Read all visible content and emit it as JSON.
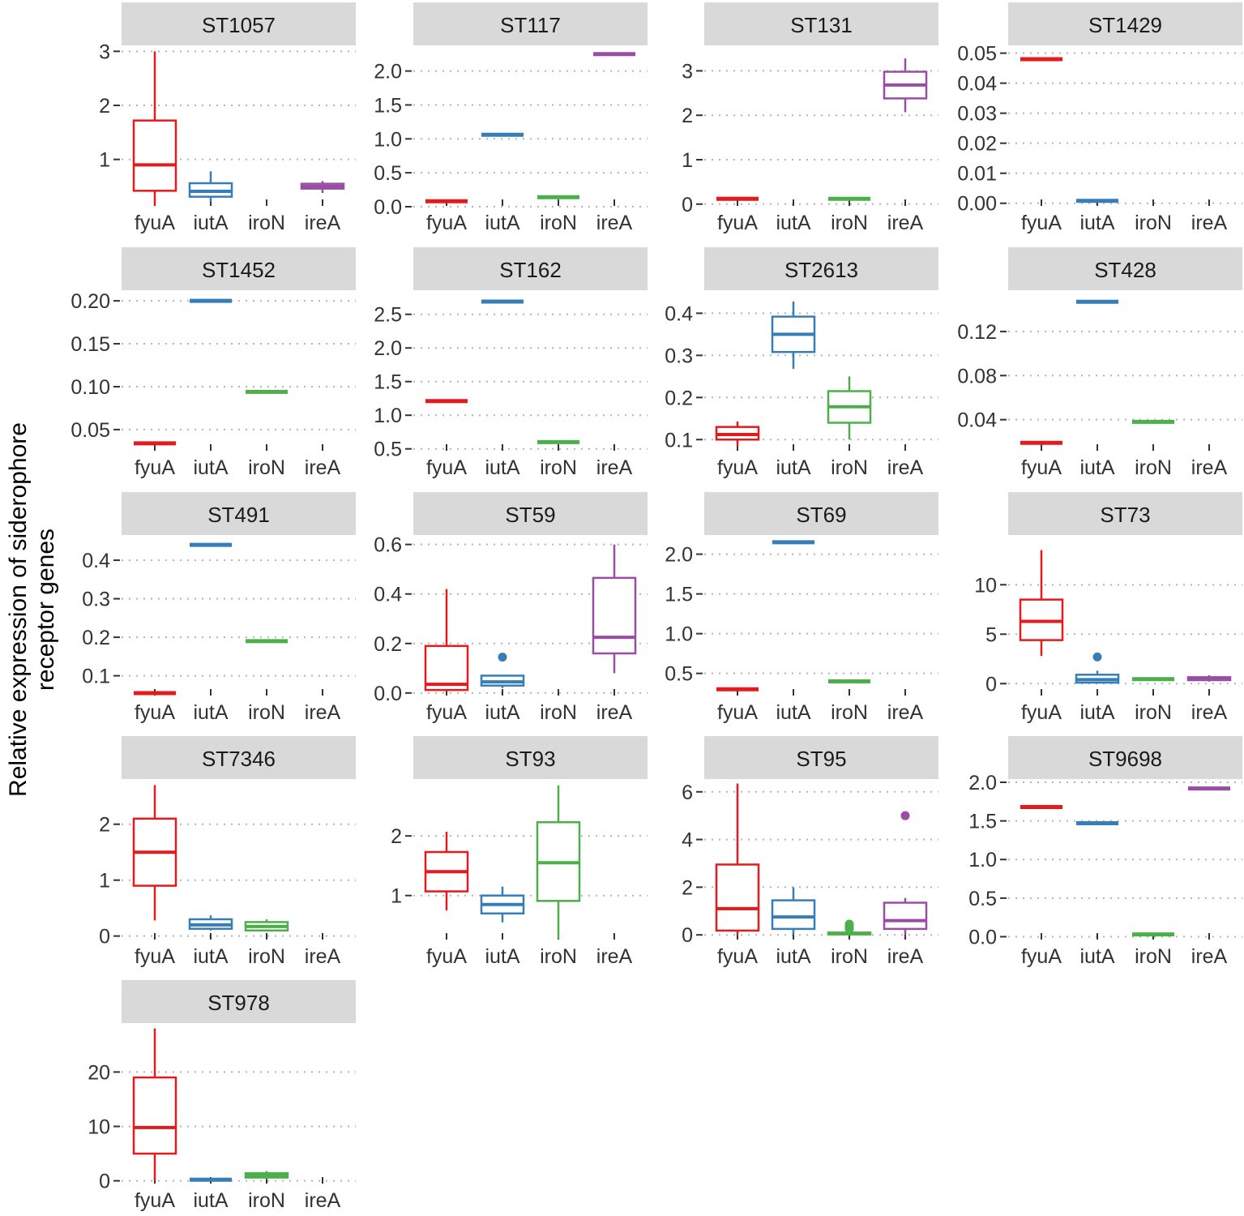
{
  "chart_data": {
    "type": "box",
    "ylabel_line1": "Relative expression of siderophore",
    "ylabel_line2": "receptor genes",
    "categories": [
      "fyuA",
      "iutA",
      "iroN",
      "ireA"
    ],
    "colors": {
      "fyuA": "#e41a1c",
      "iutA": "#377eb8",
      "iroN": "#4daf4a",
      "ireA": "#984ea3"
    },
    "panels": [
      {
        "title": "ST1057",
        "ylim": [
          0.05,
          3.05
        ],
        "ticks": [
          1,
          2,
          3
        ],
        "tick_labels": [
          "1",
          "2",
          "3"
        ],
        "boxes": {
          "fyuA": {
            "min": 0.15,
            "q1": 0.42,
            "med": 0.9,
            "q3": 1.72,
            "max": 3.0
          },
          "iutA": {
            "min": 0.22,
            "q1": 0.31,
            "med": 0.41,
            "q3": 0.56,
            "max": 0.78
          },
          "ireA": {
            "min": 0.38,
            "q1": 0.46,
            "med": 0.5,
            "q3": 0.55,
            "max": 0.6
          }
        }
      },
      {
        "title": "ST117",
        "ylim": [
          -0.06,
          2.33
        ],
        "ticks": [
          0.0,
          0.5,
          1.0,
          1.5,
          2.0
        ],
        "tick_labels": [
          "0.0",
          "0.5",
          "1.0",
          "1.5",
          "2.0"
        ],
        "boxes": {
          "fyuA": {
            "min": 0.08,
            "q1": 0.08,
            "med": 0.08,
            "q3": 0.08,
            "max": 0.08
          },
          "iutA": {
            "min": 1.06,
            "q1": 1.06,
            "med": 1.06,
            "q3": 1.06,
            "max": 1.06
          },
          "iroN": {
            "min": 0.14,
            "q1": 0.14,
            "med": 0.14,
            "q3": 0.14,
            "max": 0.14
          },
          "ireA": {
            "min": 2.25,
            "q1": 2.25,
            "med": 2.25,
            "q3": 2.25,
            "max": 2.25
          }
        }
      },
      {
        "title": "ST131",
        "ylim": [
          -0.15,
          3.5
        ],
        "ticks": [
          0,
          1,
          2,
          3
        ],
        "tick_labels": [
          "0",
          "1",
          "2",
          "3"
        ],
        "boxes": {
          "fyuA": {
            "min": 0.12,
            "q1": 0.12,
            "med": 0.12,
            "q3": 0.12,
            "max": 0.12
          },
          "iroN": {
            "min": 0.12,
            "q1": 0.12,
            "med": 0.12,
            "q3": 0.12,
            "max": 0.12
          },
          "ireA": {
            "min": 2.07,
            "q1": 2.38,
            "med": 2.68,
            "q3": 2.98,
            "max": 3.28
          }
        }
      },
      {
        "title": "ST1429",
        "ylim": [
          -0.0025,
          0.0515
        ],
        "ticks": [
          0.0,
          0.01,
          0.02,
          0.03,
          0.04,
          0.05
        ],
        "tick_labels": [
          "0.00",
          "0.01",
          "0.02",
          "0.03",
          "0.04",
          "0.05"
        ],
        "boxes": {
          "fyuA": {
            "min": 0.048,
            "q1": 0.048,
            "med": 0.048,
            "q3": 0.048,
            "max": 0.048
          },
          "iutA": {
            "min": 0.0008,
            "q1": 0.0008,
            "med": 0.0008,
            "q3": 0.0008,
            "max": 0.0008
          }
        }
      },
      {
        "title": "ST1452",
        "ylim": [
          0.0197,
          0.2086
        ],
        "ticks": [
          0.05,
          0.1,
          0.15,
          0.2
        ],
        "tick_labels": [
          "0.05",
          "0.10",
          "0.15",
          "0.20"
        ],
        "boxes": {
          "fyuA": {
            "min": 0.034,
            "q1": 0.034,
            "med": 0.034,
            "q3": 0.034,
            "max": 0.034
          },
          "iutA": {
            "min": 0.2,
            "q1": 0.2,
            "med": 0.2,
            "q3": 0.2,
            "max": 0.2
          },
          "iroN": {
            "min": 0.094,
            "q1": 0.094,
            "med": 0.094,
            "q3": 0.094,
            "max": 0.094
          }
        }
      },
      {
        "title": "ST162",
        "ylim": [
          0.4,
          2.81
        ],
        "ticks": [
          0.5,
          1.0,
          1.5,
          2.0,
          2.5
        ],
        "tick_labels": [
          "0.5",
          "1.0",
          "1.5",
          "2.0",
          "2.5"
        ],
        "boxes": {
          "fyuA": {
            "min": 1.21,
            "q1": 1.21,
            "med": 1.21,
            "q3": 1.21,
            "max": 1.21
          },
          "iutA": {
            "min": 2.69,
            "q1": 2.69,
            "med": 2.69,
            "q3": 2.69,
            "max": 2.69
          },
          "iroN": {
            "min": 0.6,
            "q1": 0.6,
            "med": 0.6,
            "q3": 0.6,
            "max": 0.6
          }
        }
      },
      {
        "title": "ST2613",
        "ylim": [
          0.062,
          0.447
        ],
        "ticks": [
          0.1,
          0.2,
          0.3,
          0.4
        ],
        "tick_labels": [
          "0.1",
          "0.2",
          "0.3",
          "0.4"
        ],
        "boxes": {
          "fyuA": {
            "min": 0.085,
            "q1": 0.1,
            "med": 0.112,
            "q3": 0.13,
            "max": 0.143
          },
          "iutA": {
            "min": 0.268,
            "q1": 0.308,
            "med": 0.35,
            "q3": 0.392,
            "max": 0.428
          },
          "iroN": {
            "min": 0.1,
            "q1": 0.14,
            "med": 0.178,
            "q3": 0.215,
            "max": 0.25
          }
        }
      },
      {
        "title": "ST428",
        "ylim": [
          0.0074,
          0.1545
        ],
        "ticks": [
          0.04,
          0.08,
          0.12
        ],
        "tick_labels": [
          "0.04",
          "0.08",
          "0.12"
        ],
        "boxes": {
          "fyuA": {
            "min": 0.019,
            "q1": 0.019,
            "med": 0.019,
            "q3": 0.019,
            "max": 0.019
          },
          "iutA": {
            "min": 0.147,
            "q1": 0.147,
            "med": 0.147,
            "q3": 0.147,
            "max": 0.147
          },
          "iroN": {
            "min": 0.038,
            "q1": 0.038,
            "med": 0.038,
            "q3": 0.038,
            "max": 0.038
          }
        }
      },
      {
        "title": "ST491",
        "ylim": [
          0.036,
          0.457
        ],
        "ticks": [
          0.1,
          0.2,
          0.3,
          0.4
        ],
        "tick_labels": [
          "0.1",
          "0.2",
          "0.3",
          "0.4"
        ],
        "boxes": {
          "fyuA": {
            "min": 0.055,
            "q1": 0.055,
            "med": 0.055,
            "q3": 0.055,
            "max": 0.055
          },
          "iutA": {
            "min": 0.44,
            "q1": 0.44,
            "med": 0.44,
            "q3": 0.44,
            "max": 0.44
          },
          "iroN": {
            "min": 0.19,
            "q1": 0.19,
            "med": 0.19,
            "q3": 0.19,
            "max": 0.19
          }
        }
      },
      {
        "title": "ST59",
        "ylim": [
          -0.03,
          0.625
        ],
        "ticks": [
          0.0,
          0.2,
          0.4,
          0.6
        ],
        "tick_labels": [
          "0.0",
          "0.2",
          "0.4",
          "0.6"
        ],
        "boxes": {
          "fyuA": {
            "min": 0.005,
            "q1": 0.012,
            "med": 0.035,
            "q3": 0.19,
            "max": 0.42
          },
          "iutA": {
            "min": 0.02,
            "q1": 0.03,
            "med": 0.045,
            "q3": 0.07,
            "max": 0.07,
            "outliers": [
              0.145
            ]
          },
          "ireA": {
            "min": 0.08,
            "q1": 0.16,
            "med": 0.225,
            "q3": 0.465,
            "max": 0.6
          }
        }
      },
      {
        "title": "ST69",
        "ylim": [
          0.16,
          2.2
        ],
        "ticks": [
          0.5,
          1.0,
          1.5,
          2.0
        ],
        "tick_labels": [
          "0.5",
          "1.0",
          "1.5",
          "2.0"
        ],
        "boxes": {
          "fyuA": {
            "min": 0.3,
            "q1": 0.3,
            "med": 0.3,
            "q3": 0.3,
            "max": 0.3
          },
          "iutA": {
            "min": 2.15,
            "q1": 2.15,
            "med": 2.15,
            "q3": 2.15,
            "max": 2.15
          },
          "iroN": {
            "min": 0.4,
            "q1": 0.4,
            "med": 0.4,
            "q3": 0.4,
            "max": 0.4
          }
        }
      },
      {
        "title": "ST73",
        "ylim": [
          -1.7,
          14.7
        ],
        "ticks": [
          0,
          5,
          10
        ],
        "tick_labels": [
          "0",
          "5",
          "10"
        ],
        "boxes": {
          "fyuA": {
            "min": 2.8,
            "q1": 4.4,
            "med": 6.3,
            "q3": 8.5,
            "max": 13.5
          },
          "iutA": {
            "min": 0.0,
            "q1": 0.1,
            "med": 0.4,
            "q3": 0.9,
            "max": 1.3,
            "outliers": [
              2.7
            ]
          },
          "iroN": {
            "min": 0.35,
            "q1": 0.4,
            "med": 0.45,
            "q3": 0.5,
            "max": 0.55
          },
          "ireA": {
            "min": 0.2,
            "q1": 0.35,
            "med": 0.5,
            "q3": 0.65,
            "max": 0.85
          }
        }
      },
      {
        "title": "ST7346",
        "ylim": [
          -0.15,
          2.75
        ],
        "ticks": [
          0,
          1,
          2
        ],
        "tick_labels": [
          "0",
          "1",
          "2"
        ],
        "boxes": {
          "fyuA": {
            "min": 0.28,
            "q1": 0.9,
            "med": 1.5,
            "q3": 2.1,
            "max": 2.7
          },
          "iutA": {
            "min": 0.1,
            "q1": 0.13,
            "med": 0.2,
            "q3": 0.3,
            "max": 0.37
          },
          "iroN": {
            "min": 0.08,
            "q1": 0.1,
            "med": 0.17,
            "q3": 0.25,
            "max": 0.3
          }
        }
      },
      {
        "title": "ST93",
        "ylim": [
          0.18,
          2.9
        ],
        "ticks": [
          1,
          2
        ],
        "tick_labels": [
          "1",
          "2"
        ],
        "boxes": {
          "fyuA": {
            "min": 0.75,
            "q1": 1.07,
            "med": 1.4,
            "q3": 1.73,
            "max": 2.07
          },
          "iutA": {
            "min": 0.55,
            "q1": 0.7,
            "med": 0.85,
            "q3": 1.0,
            "max": 1.15
          },
          "iroN": {
            "min": 0.27,
            "q1": 0.91,
            "med": 1.55,
            "q3": 2.23,
            "max": 2.85
          }
        }
      },
      {
        "title": "ST95",
        "ylim": [
          -0.4,
          6.4
        ],
        "ticks": [
          0,
          2,
          4,
          6
        ],
        "tick_labels": [
          "0",
          "2",
          "4",
          "6"
        ],
        "boxes": {
          "fyuA": {
            "min": 0.0,
            "q1": 0.18,
            "med": 1.1,
            "q3": 2.95,
            "max": 6.35
          },
          "iutA": {
            "min": 0.0,
            "q1": 0.25,
            "med": 0.75,
            "q3": 1.45,
            "max": 2.0
          },
          "iroN": {
            "min": 0.0,
            "q1": 0.02,
            "med": 0.05,
            "q3": 0.1,
            "max": 0.18,
            "outliers": [
              0.25,
              0.35,
              0.45
            ]
          },
          "ireA": {
            "min": 0.0,
            "q1": 0.25,
            "med": 0.6,
            "q3": 1.35,
            "max": 1.55,
            "outliers": [
              5.0
            ]
          }
        }
      },
      {
        "title": "ST9698",
        "ylim": [
          -0.1,
          2.0
        ],
        "ticks": [
          0.0,
          0.5,
          1.0,
          1.5,
          2.0
        ],
        "tick_labels": [
          "0.0",
          "0.5",
          "1.0",
          "1.5",
          "2.0"
        ],
        "boxes": {
          "fyuA": {
            "min": 1.68,
            "q1": 1.68,
            "med": 1.68,
            "q3": 1.68,
            "max": 1.68
          },
          "iutA": {
            "min": 1.47,
            "q1": 1.47,
            "med": 1.47,
            "q3": 1.47,
            "max": 1.47
          },
          "iroN": {
            "min": 0.03,
            "q1": 0.03,
            "med": 0.03,
            "q3": 0.03,
            "max": 0.03
          },
          "ireA": {
            "min": 1.92,
            "q1": 1.92,
            "med": 1.92,
            "q3": 1.92,
            "max": 1.92
          }
        }
      },
      {
        "title": "ST978",
        "ylim": [
          -1.4,
          28.4
        ],
        "ticks": [
          0,
          10,
          20
        ],
        "tick_labels": [
          "0",
          "10",
          "20"
        ],
        "boxes": {
          "fyuA": {
            "min": 0.0,
            "q1": 5.0,
            "med": 9.8,
            "q3": 19.0,
            "max": 28.0
          },
          "iutA": {
            "min": 0.2,
            "q1": 0.2,
            "med": 0.2,
            "q3": 0.2,
            "max": 0.2
          },
          "iroN": {
            "min": 0.3,
            "q1": 0.6,
            "med": 1.0,
            "q3": 1.4,
            "max": 1.8
          }
        }
      }
    ]
  }
}
